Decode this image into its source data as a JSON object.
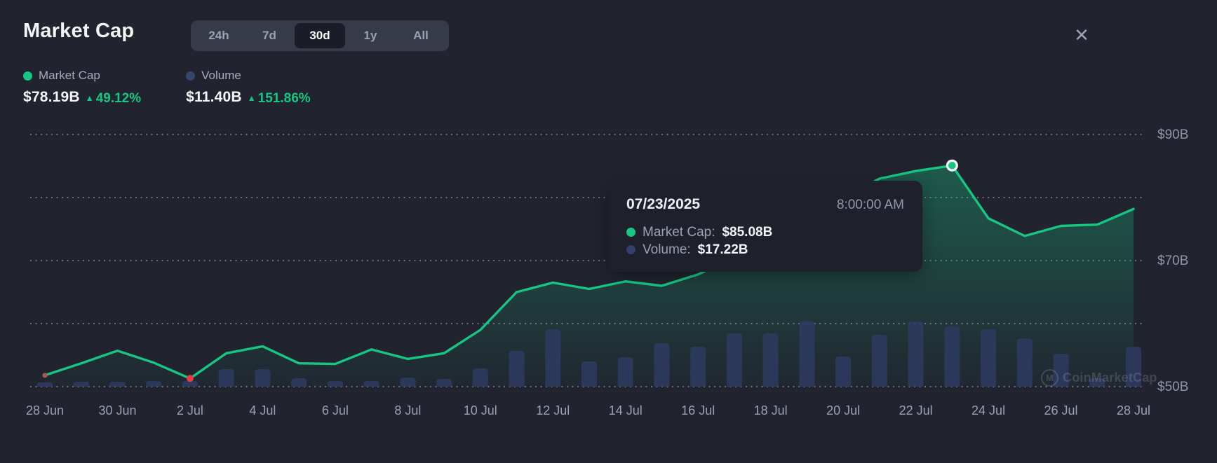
{
  "header": {
    "title": "Market Cap",
    "ranges": [
      {
        "label": "24h",
        "active": false
      },
      {
        "label": "7d",
        "active": false
      },
      {
        "label": "30d",
        "active": true
      },
      {
        "label": "1y",
        "active": false
      },
      {
        "label": "All",
        "active": false
      }
    ],
    "close_icon": "✕"
  },
  "legend": {
    "items": [
      {
        "name": "Market Cap",
        "value": "$78.19B",
        "change": "49.12%",
        "direction": "up",
        "arrow": "▲",
        "color": "#16c784"
      },
      {
        "name": "Volume",
        "value": "$11.40B",
        "change": "151.86%",
        "direction": "up",
        "arrow": "▲",
        "color": "#36456f"
      }
    ]
  },
  "tooltip": {
    "date": "07/23/2025",
    "time": "8:00:00 AM",
    "rows": [
      {
        "label": "Market Cap:",
        "value": "$85.08B",
        "color": "#16c784"
      },
      {
        "label": "Volume:",
        "value": "$17.22B",
        "color": "#33406b"
      }
    ]
  },
  "watermark": {
    "text": "CoinMarketCap",
    "logo_letter": "M"
  },
  "colors": {
    "background": "#21242f",
    "line_green": "#16c784",
    "low_red": "#ea3943",
    "volume_bar": "#2e3c63",
    "grid_dot": "rgba(255,255,255,0.42)",
    "axis_label": "#8f96a8",
    "tick_label": "#9aa1b3"
  },
  "chart_data": {
    "type": "line+bar",
    "title": "Market Cap (30d)",
    "x": [
      "Jun 28",
      "Jun 29",
      "Jun 30",
      "Jul 1",
      "Jul 2",
      "Jul 3",
      "Jul 4",
      "Jul 5",
      "Jul 6",
      "Jul 7",
      "Jul 8",
      "Jul 9",
      "Jul 10",
      "Jul 11",
      "Jul 12",
      "Jul 13",
      "Jul 14",
      "Jul 15",
      "Jul 16",
      "Jul 17",
      "Jul 18",
      "Jul 19",
      "Jul 20",
      "Jul 21",
      "Jul 22",
      "Jul 23",
      "Jul 24",
      "Jul 25",
      "Jul 26",
      "Jul 27",
      "Jul 28"
    ],
    "x_tick_labels": [
      "28 Jun",
      "30 Jun",
      "2 Jul",
      "4 Jul",
      "6 Jul",
      "8 Jul",
      "10 Jul",
      "12 Jul",
      "14 Jul",
      "16 Jul",
      "18 Jul",
      "20 Jul",
      "22 Jul",
      "24 Jul",
      "26 Jul",
      "28 Jul"
    ],
    "series": [
      {
        "name": "Market Cap",
        "kind": "line",
        "unit": "$B",
        "color": "#16c784",
        "values": [
          51.8,
          53.7,
          55.7,
          53.8,
          51.3,
          55.3,
          56.4,
          53.7,
          53.6,
          55.9,
          54.4,
          55.3,
          59.0,
          65.0,
          66.5,
          65.5,
          66.7,
          66.0,
          67.8,
          70.5,
          73.5,
          76.5,
          80.0,
          83.0,
          84.2,
          85.08,
          76.7,
          73.9,
          75.5,
          75.7,
          78.19
        ]
      },
      {
        "name": "Volume",
        "kind": "bar",
        "unit": "$B",
        "color": "#2e3c63",
        "values": [
          1.2,
          1.4,
          1.4,
          1.6,
          1.6,
          5.0,
          5.0,
          2.4,
          1.6,
          1.6,
          2.6,
          2.2,
          5.2,
          10.2,
          16.4,
          7.2,
          8.4,
          12.4,
          11.4,
          15.2,
          15.2,
          18.8,
          8.6,
          14.8,
          18.6,
          17.22,
          16.4,
          13.8,
          9.4,
          2.4,
          11.4
        ]
      }
    ],
    "y_axis": {
      "labels_shown": [
        "$90B",
        "$70B",
        "$50B"
      ],
      "gridlines_B": [
        90,
        80,
        70,
        60,
        50
      ],
      "range_B": [
        50,
        90
      ],
      "side": "right"
    },
    "grid": "dotted-horizontal",
    "legend_position": "top-left",
    "annotations": {
      "low_marker": {
        "x": "Jul 2",
        "index": 4,
        "value_B": 51.3,
        "color": "#ea3943"
      },
      "active_point": {
        "x": "Jul 23",
        "index": 25,
        "value_B": 85.08,
        "volume_B": 17.22,
        "style": "white-ring-green-dot"
      }
    }
  }
}
